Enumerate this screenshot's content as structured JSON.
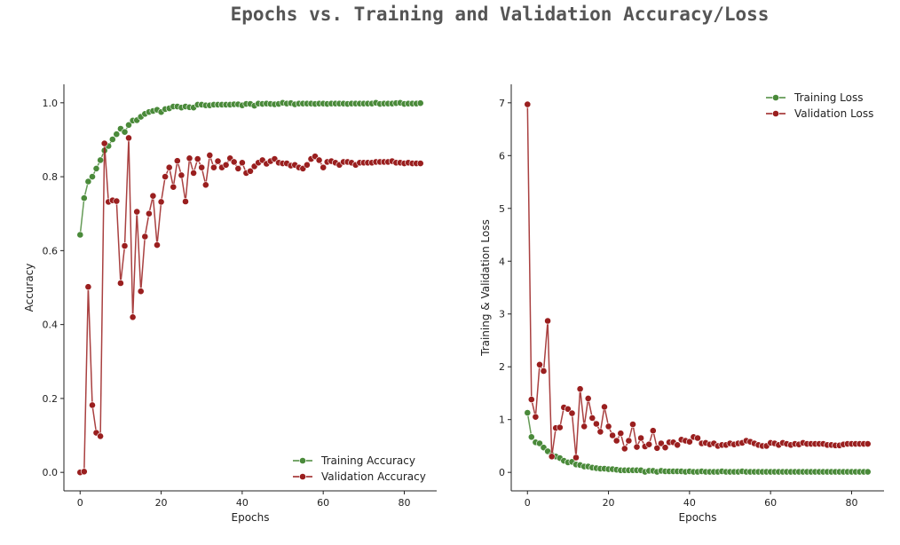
{
  "title": "Epochs vs. Training and Validation Accuracy/Loss",
  "colors": {
    "train": "#4a8a3a",
    "val": "#9a1f1f"
  },
  "chart_data": [
    {
      "type": "line",
      "xlabel": "Epochs",
      "ylabel": "Accuracy",
      "xlim": [
        -4,
        88
      ],
      "ylim": [
        -0.05,
        1.05
      ],
      "xticks": [
        0,
        20,
        40,
        60,
        80
      ],
      "yticks": [
        0.0,
        0.2,
        0.4,
        0.6,
        0.8,
        1.0
      ],
      "ytick_labels": [
        "0.0",
        "0.2",
        "0.4",
        "0.6",
        "0.8",
        "1.0"
      ],
      "legend": "bottom-right",
      "series": [
        {
          "name": "Training Accuracy",
          "values": [
            0.643,
            0.742,
            0.787,
            0.8,
            0.822,
            0.845,
            0.871,
            0.883,
            0.901,
            0.915,
            0.93,
            0.921,
            0.94,
            0.952,
            0.953,
            0.962,
            0.97,
            0.975,
            0.978,
            0.981,
            0.975,
            0.983,
            0.985,
            0.99,
            0.99,
            0.987,
            0.99,
            0.988,
            0.987,
            0.995,
            0.995,
            0.993,
            0.993,
            0.995,
            0.995,
            0.995,
            0.995,
            0.995,
            0.996,
            0.996,
            0.993,
            0.997,
            0.997,
            0.992,
            0.998,
            0.997,
            0.998,
            0.997,
            0.996,
            0.997,
            1.0,
            0.998,
            0.999,
            0.996,
            0.998,
            0.998,
            0.998,
            0.998,
            0.997,
            0.998,
            0.998,
            0.997,
            0.998,
            0.998,
            0.998,
            0.998,
            0.997,
            0.998,
            0.998,
            0.998,
            0.998,
            0.998,
            0.998,
            1.0,
            0.997,
            0.998,
            0.998,
            0.998,
            0.999,
            1.0,
            0.997,
            0.998,
            0.998,
            0.998,
            0.999
          ]
        },
        {
          "name": "Validation Accuracy",
          "values": [
            0.0,
            0.002,
            0.502,
            0.182,
            0.107,
            0.098,
            0.89,
            0.732,
            0.736,
            0.734,
            0.512,
            0.613,
            0.905,
            0.42,
            0.705,
            0.49,
            0.638,
            0.7,
            0.748,
            0.615,
            0.732,
            0.8,
            0.825,
            0.772,
            0.843,
            0.804,
            0.733,
            0.85,
            0.81,
            0.848,
            0.825,
            0.778,
            0.858,
            0.825,
            0.842,
            0.825,
            0.832,
            0.85,
            0.84,
            0.822,
            0.838,
            0.81,
            0.815,
            0.828,
            0.838,
            0.845,
            0.835,
            0.842,
            0.848,
            0.838,
            0.836,
            0.836,
            0.83,
            0.832,
            0.825,
            0.822,
            0.832,
            0.848,
            0.855,
            0.845,
            0.825,
            0.84,
            0.842,
            0.838,
            0.832,
            0.84,
            0.84,
            0.838,
            0.832,
            0.838,
            0.838,
            0.838,
            0.838,
            0.84,
            0.84,
            0.84,
            0.84,
            0.842,
            0.838,
            0.838,
            0.836,
            0.838,
            0.836,
            0.836,
            0.836
          ]
        }
      ]
    },
    {
      "type": "line",
      "xlabel": "Epochs",
      "ylabel": "Training & Validation Loss",
      "xlim": [
        -4,
        88
      ],
      "ylim": [
        -0.35,
        7.35
      ],
      "xticks": [
        0,
        20,
        40,
        60,
        80
      ],
      "yticks": [
        0,
        1,
        2,
        3,
        4,
        5,
        6,
        7
      ],
      "ytick_labels": [
        "0",
        "1",
        "2",
        "3",
        "4",
        "5",
        "6",
        "7"
      ],
      "legend": "top-right",
      "series": [
        {
          "name": "Training Loss",
          "values": [
            1.13,
            0.67,
            0.57,
            0.55,
            0.47,
            0.4,
            0.33,
            0.3,
            0.27,
            0.22,
            0.19,
            0.2,
            0.15,
            0.14,
            0.11,
            0.11,
            0.09,
            0.08,
            0.07,
            0.07,
            0.06,
            0.06,
            0.05,
            0.04,
            0.04,
            0.04,
            0.04,
            0.04,
            0.04,
            0.01,
            0.03,
            0.03,
            0.01,
            0.03,
            0.02,
            0.02,
            0.02,
            0.02,
            0.02,
            0.01,
            0.02,
            0.01,
            0.01,
            0.02,
            0.01,
            0.01,
            0.01,
            0.01,
            0.02,
            0.01,
            0.01,
            0.01,
            0.01,
            0.02,
            0.01,
            0.01,
            0.01,
            0.01,
            0.01,
            0.01,
            0.01,
            0.01,
            0.01,
            0.01,
            0.01,
            0.01,
            0.01,
            0.01,
            0.01,
            0.01,
            0.01,
            0.01,
            0.01,
            0.01,
            0.01,
            0.01,
            0.01,
            0.01,
            0.01,
            0.01,
            0.01,
            0.01,
            0.01,
            0.01,
            0.01
          ]
        },
        {
          "name": "Validation Loss",
          "values": [
            6.97,
            1.38,
            1.05,
            2.04,
            1.92,
            2.87,
            0.3,
            0.84,
            0.85,
            1.23,
            1.2,
            1.12,
            0.28,
            1.58,
            0.87,
            1.4,
            1.03,
            0.92,
            0.77,
            1.24,
            0.87,
            0.7,
            0.6,
            0.74,
            0.45,
            0.6,
            0.91,
            0.48,
            0.65,
            0.49,
            0.53,
            0.79,
            0.46,
            0.55,
            0.47,
            0.57,
            0.57,
            0.52,
            0.62,
            0.6,
            0.58,
            0.67,
            0.65,
            0.55,
            0.56,
            0.53,
            0.55,
            0.5,
            0.52,
            0.52,
            0.55,
            0.53,
            0.55,
            0.56,
            0.6,
            0.58,
            0.55,
            0.52,
            0.5,
            0.5,
            0.56,
            0.55,
            0.52,
            0.56,
            0.54,
            0.52,
            0.54,
            0.53,
            0.56,
            0.54,
            0.54,
            0.54,
            0.54,
            0.54,
            0.52,
            0.52,
            0.51,
            0.51,
            0.53,
            0.54,
            0.54,
            0.54,
            0.54,
            0.54,
            0.54
          ]
        }
      ]
    }
  ]
}
